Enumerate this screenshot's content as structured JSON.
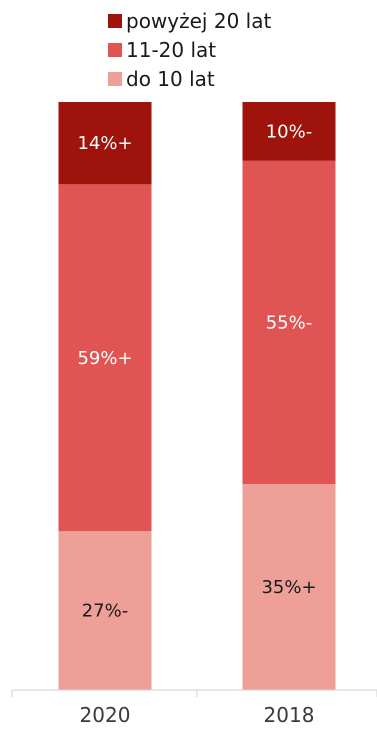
{
  "chart_data": {
    "type": "bar",
    "stacked": true,
    "normalized": true,
    "categories": [
      "2020",
      "2018"
    ],
    "series": [
      {
        "name": "do 10 lat",
        "color": "#ee9f98",
        "values": [
          27,
          35
        ],
        "labels": [
          "27%-",
          "35%+"
        ],
        "label_color": "#1a1a1a"
      },
      {
        "name": "11-20 lat",
        "color": "#e05553",
        "values": [
          59,
          55
        ],
        "labels": [
          "59%+",
          "55%-"
        ],
        "label_color": "#ffffff"
      },
      {
        "name": "powyżej 20 lat",
        "color": "#9e130c",
        "values": [
          14,
          10
        ],
        "labels": [
          "14%+",
          "10%-"
        ],
        "label_color": "#ffffff"
      }
    ],
    "legend": {
      "placement": "top",
      "order": [
        "powyżej 20 lat",
        "11-20 lat",
        "do 10 lat"
      ]
    },
    "ylim": [
      0,
      100
    ],
    "grid": false
  }
}
